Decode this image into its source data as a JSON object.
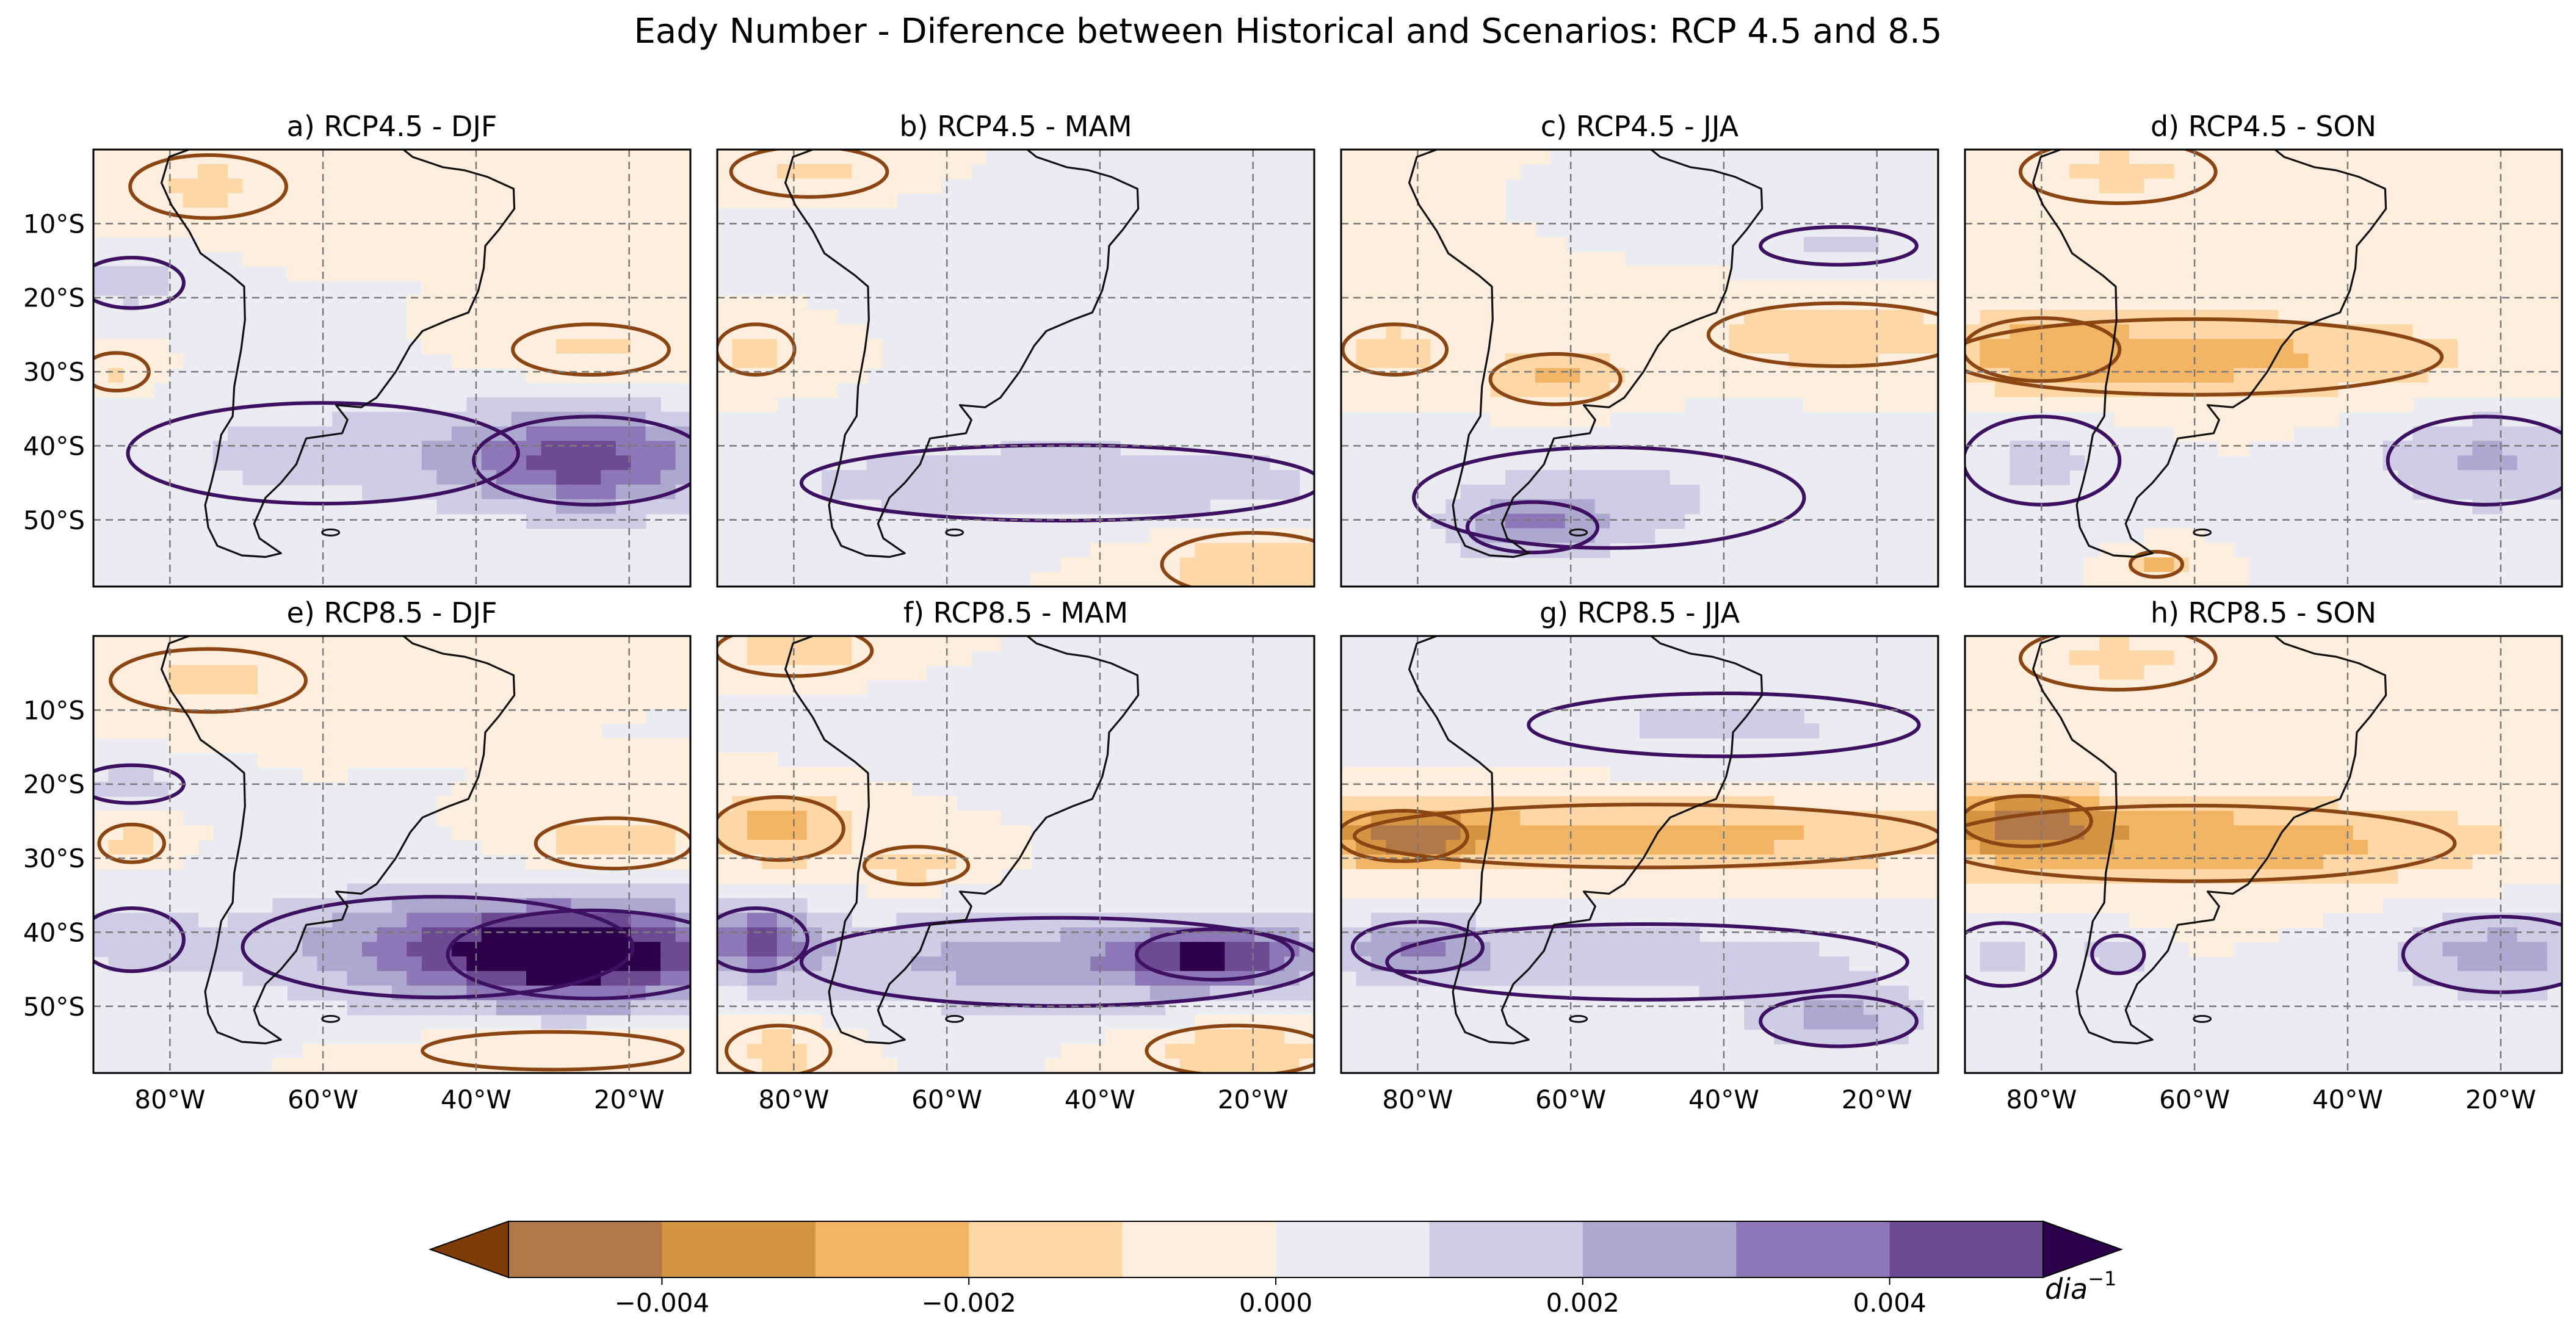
{
  "chart_data": {
    "type": "heatmap",
    "title": "Eady Number - Diference between Historical and Scenarios: RCP 4.5 and 8.5",
    "map_extent": {
      "lon_range": [
        -90,
        -12
      ],
      "lat_range": [
        -59,
        0
      ]
    },
    "lon_ticks": [
      -80,
      -60,
      -40,
      -20
    ],
    "lon_tick_labels": [
      "80°W",
      "60°W",
      "40°W",
      "20°W"
    ],
    "lat_ticks": [
      -10,
      -20,
      -30,
      -40,
      -50
    ],
    "lat_tick_labels": [
      "10°S",
      "20°S",
      "30°S",
      "40°S",
      "50°S"
    ],
    "gridlines": "dashed",
    "panels": [
      {
        "title": "a) RCP4.5 - DJF",
        "blobs": [
          {
            "lon": -25,
            "lat": -42,
            "rx": 18,
            "ry": 7,
            "v": 0.0042
          },
          {
            "lon": -60,
            "lat": -41,
            "rx": 30,
            "ry": 8,
            "v": 0.0013
          },
          {
            "lon": -85,
            "lat": -18,
            "rx": 8,
            "ry": 4,
            "v": 0.0016
          },
          {
            "lon": -25,
            "lat": -27,
            "rx": 12,
            "ry": 4,
            "v": -0.0012
          },
          {
            "lon": -75,
            "lat": -5,
            "rx": 12,
            "ry": 5,
            "v": -0.0012
          },
          {
            "lon": -40,
            "lat": -5,
            "rx": 15,
            "ry": 4,
            "v": -0.0009
          },
          {
            "lon": -87,
            "lat": -30,
            "rx": 5,
            "ry": 3,
            "v": -0.0012
          }
        ]
      },
      {
        "title": "b) RCP4.5 - MAM",
        "blobs": [
          {
            "lon": -45,
            "lat": -45,
            "rx": 40,
            "ry": 6,
            "v": 0.0019
          },
          {
            "lon": -45,
            "lat": -12,
            "rx": 30,
            "ry": 6,
            "v": 0.0008
          },
          {
            "lon": -85,
            "lat": -27,
            "rx": 6,
            "ry": 4,
            "v": -0.0014
          },
          {
            "lon": -78,
            "lat": -3,
            "rx": 12,
            "ry": 4,
            "v": -0.0012
          },
          {
            "lon": -20,
            "lat": -56,
            "rx": 14,
            "ry": 5,
            "v": -0.0018
          }
        ]
      },
      {
        "title": "c) RCP4.5 - JJA",
        "blobs": [
          {
            "lon": -25,
            "lat": -25,
            "rx": 20,
            "ry": 5,
            "v": -0.0018
          },
          {
            "lon": -62,
            "lat": -31,
            "rx": 10,
            "ry": 4,
            "v": -0.0022
          },
          {
            "lon": -83,
            "lat": -27,
            "rx": 8,
            "ry": 4,
            "v": -0.0015
          },
          {
            "lon": -55,
            "lat": -47,
            "rx": 30,
            "ry": 8,
            "v": 0.0012
          },
          {
            "lon": -65,
            "lat": -51,
            "rx": 10,
            "ry": 4,
            "v": 0.0024
          },
          {
            "lon": -25,
            "lat": -13,
            "rx": 12,
            "ry": 3,
            "v": 0.0012
          }
        ]
      },
      {
        "title": "d) RCP4.5 - SON",
        "blobs": [
          {
            "lon": -60,
            "lat": -28,
            "rx": 38,
            "ry": 6,
            "v": -0.0024
          },
          {
            "lon": -80,
            "lat": -27,
            "rx": 12,
            "ry": 5,
            "v": -0.0012
          },
          {
            "lon": -22,
            "lat": -42,
            "rx": 15,
            "ry": 7,
            "v": 0.0022
          },
          {
            "lon": -80,
            "lat": -42,
            "rx": 12,
            "ry": 7,
            "v": 0.0012
          },
          {
            "lon": -70,
            "lat": -3,
            "rx": 15,
            "ry": 5,
            "v": -0.0012
          },
          {
            "lon": -65,
            "lat": -56,
            "rx": 4,
            "ry": 2,
            "v": -0.0025
          }
        ]
      },
      {
        "title": "e) RCP8.5 - DJF",
        "blobs": [
          {
            "lon": -25,
            "lat": -43,
            "rx": 22,
            "ry": 7,
            "v": 0.0048
          },
          {
            "lon": -45,
            "lat": -42,
            "rx": 30,
            "ry": 8,
            "v": 0.0025
          },
          {
            "lon": -85,
            "lat": -41,
            "rx": 8,
            "ry": 5,
            "v": 0.0014
          },
          {
            "lon": -85,
            "lat": -20,
            "rx": 8,
            "ry": 3,
            "v": 0.0015
          },
          {
            "lon": -22,
            "lat": -28,
            "rx": 12,
            "ry": 4,
            "v": -0.0018
          },
          {
            "lon": -85,
            "lat": -28,
            "rx": 5,
            "ry": 3,
            "v": -0.0015
          },
          {
            "lon": -75,
            "lat": -6,
            "rx": 15,
            "ry": 5,
            "v": -0.0012
          },
          {
            "lon": -30,
            "lat": -56,
            "rx": 20,
            "ry": 3,
            "v": -0.0012
          }
        ]
      },
      {
        "title": "f) RCP8.5 - MAM",
        "blobs": [
          {
            "lon": -45,
            "lat": -44,
            "rx": 40,
            "ry": 7,
            "v": 0.0025
          },
          {
            "lon": -85,
            "lat": -41,
            "rx": 8,
            "ry": 5,
            "v": 0.0035
          },
          {
            "lon": -25,
            "lat": -43,
            "rx": 12,
            "ry": 4,
            "v": 0.0035
          },
          {
            "lon": -82,
            "lat": -26,
            "rx": 10,
            "ry": 5,
            "v": -0.0025
          },
          {
            "lon": -64,
            "lat": -31,
            "rx": 8,
            "ry": 3,
            "v": -0.0015
          },
          {
            "lon": -80,
            "lat": -2,
            "rx": 12,
            "ry": 4,
            "v": -0.0015
          },
          {
            "lon": -22,
            "lat": -56,
            "rx": 14,
            "ry": 4,
            "v": -0.0018
          },
          {
            "lon": -82,
            "lat": -56,
            "rx": 8,
            "ry": 4,
            "v": -0.0015
          },
          {
            "lon": -45,
            "lat": -12,
            "rx": 30,
            "ry": 5,
            "v": 0.0009
          }
        ]
      },
      {
        "title": "g) RCP8.5 - JJA",
        "blobs": [
          {
            "lon": -50,
            "lat": -27,
            "rx": 45,
            "ry": 5,
            "v": -0.0025
          },
          {
            "lon": -82,
            "lat": -27,
            "rx": 10,
            "ry": 4,
            "v": -0.0035
          },
          {
            "lon": -50,
            "lat": -44,
            "rx": 40,
            "ry": 6,
            "v": 0.0015
          },
          {
            "lon": -80,
            "lat": -42,
            "rx": 10,
            "ry": 4,
            "v": 0.0025
          },
          {
            "lon": -25,
            "lat": -52,
            "rx": 12,
            "ry": 4,
            "v": 0.0022
          },
          {
            "lon": -40,
            "lat": -12,
            "rx": 30,
            "ry": 5,
            "v": 0.0012
          }
        ]
      },
      {
        "title": "h) RCP8.5 - SON",
        "blobs": [
          {
            "lon": -60,
            "lat": -28,
            "rx": 40,
            "ry": 6,
            "v": -0.0028
          },
          {
            "lon": -82,
            "lat": -25,
            "rx": 10,
            "ry": 4,
            "v": -0.0035
          },
          {
            "lon": -20,
            "lat": -43,
            "rx": 15,
            "ry": 6,
            "v": 0.0025
          },
          {
            "lon": -85,
            "lat": -43,
            "rx": 8,
            "ry": 5,
            "v": 0.0012
          },
          {
            "lon": -70,
            "lat": -3,
            "rx": 15,
            "ry": 5,
            "v": -0.0012
          },
          {
            "lon": -70,
            "lat": -43,
            "rx": 4,
            "ry": 3,
            "v": 0.002
          }
        ]
      }
    ],
    "colorbar": {
      "levels": [
        -0.005,
        -0.004,
        -0.003,
        -0.002,
        -0.001,
        0.0,
        0.001,
        0.002,
        0.003,
        0.004,
        0.005
      ],
      "colors": [
        "#b1794a",
        "#d59441",
        "#f1b565",
        "#fdd7a6",
        "#fdeedd",
        "#ebebf2",
        "#cfcde6",
        "#ada8d0",
        "#8d77b6",
        "#6c4b93"
      ],
      "under_color": "#7f3b08",
      "over_color": "#2d004b",
      "tick_values": [
        -0.004,
        -0.002,
        0.0,
        0.002,
        0.004
      ],
      "tick_labels": [
        "−0.004",
        "−0.002",
        "0.000",
        "0.002",
        "0.004"
      ],
      "unit_label": "dia",
      "unit_exponent": "−1"
    },
    "contour_colors": {
      "positive": "#3d1062",
      "negative": "#8b4513"
    }
  }
}
